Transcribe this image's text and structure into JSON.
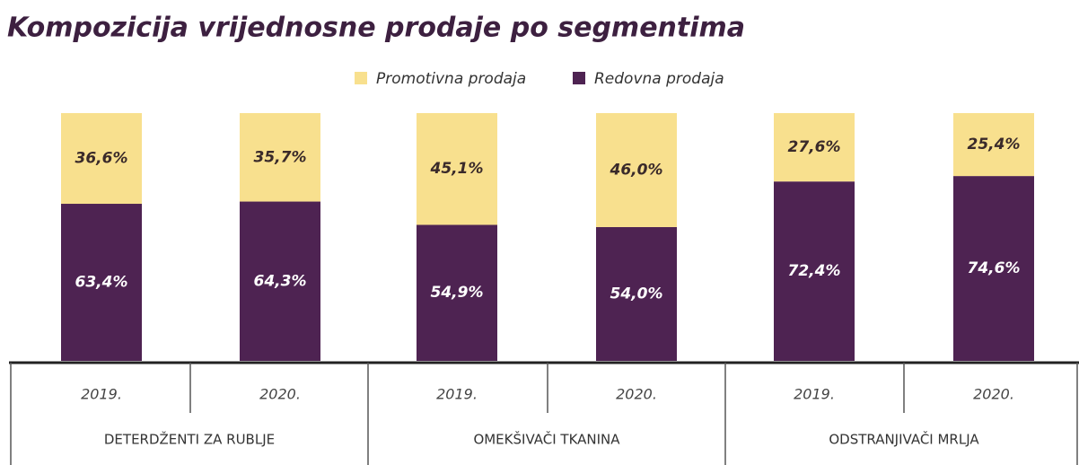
{
  "chart_data": {
    "type": "stacked_bar_100",
    "title": "Kompozicija vrijednosne prodaje po segmentima",
    "categories": [
      "2019.",
      "2020.",
      "2019.",
      "2020.",
      "2019.",
      "2020."
    ],
    "groups": [
      "DETERDŽENTI ZA RUBLJE",
      "OMEKŠIVAČI TKANINA",
      "ODSTRANJIVAČI MRLJA"
    ],
    "series": [
      {
        "name": "Promotivna prodaja",
        "color": "#f8e08e",
        "values": [
          36.6,
          35.7,
          45.1,
          46.0,
          27.6,
          25.4
        ],
        "value_labels": [
          "36,6%",
          "35,7%",
          "45,1%",
          "46,0%",
          "27,6%",
          "25,4%"
        ]
      },
      {
        "name": "Redovna prodaja",
        "color": "#4e2352",
        "values": [
          63.4,
          64.3,
          54.9,
          54.0,
          72.4,
          74.6
        ],
        "value_labels": [
          "63,4%",
          "64,3%",
          "54,9%",
          "54,0%",
          "72,4%",
          "74,6%"
        ]
      }
    ]
  }
}
